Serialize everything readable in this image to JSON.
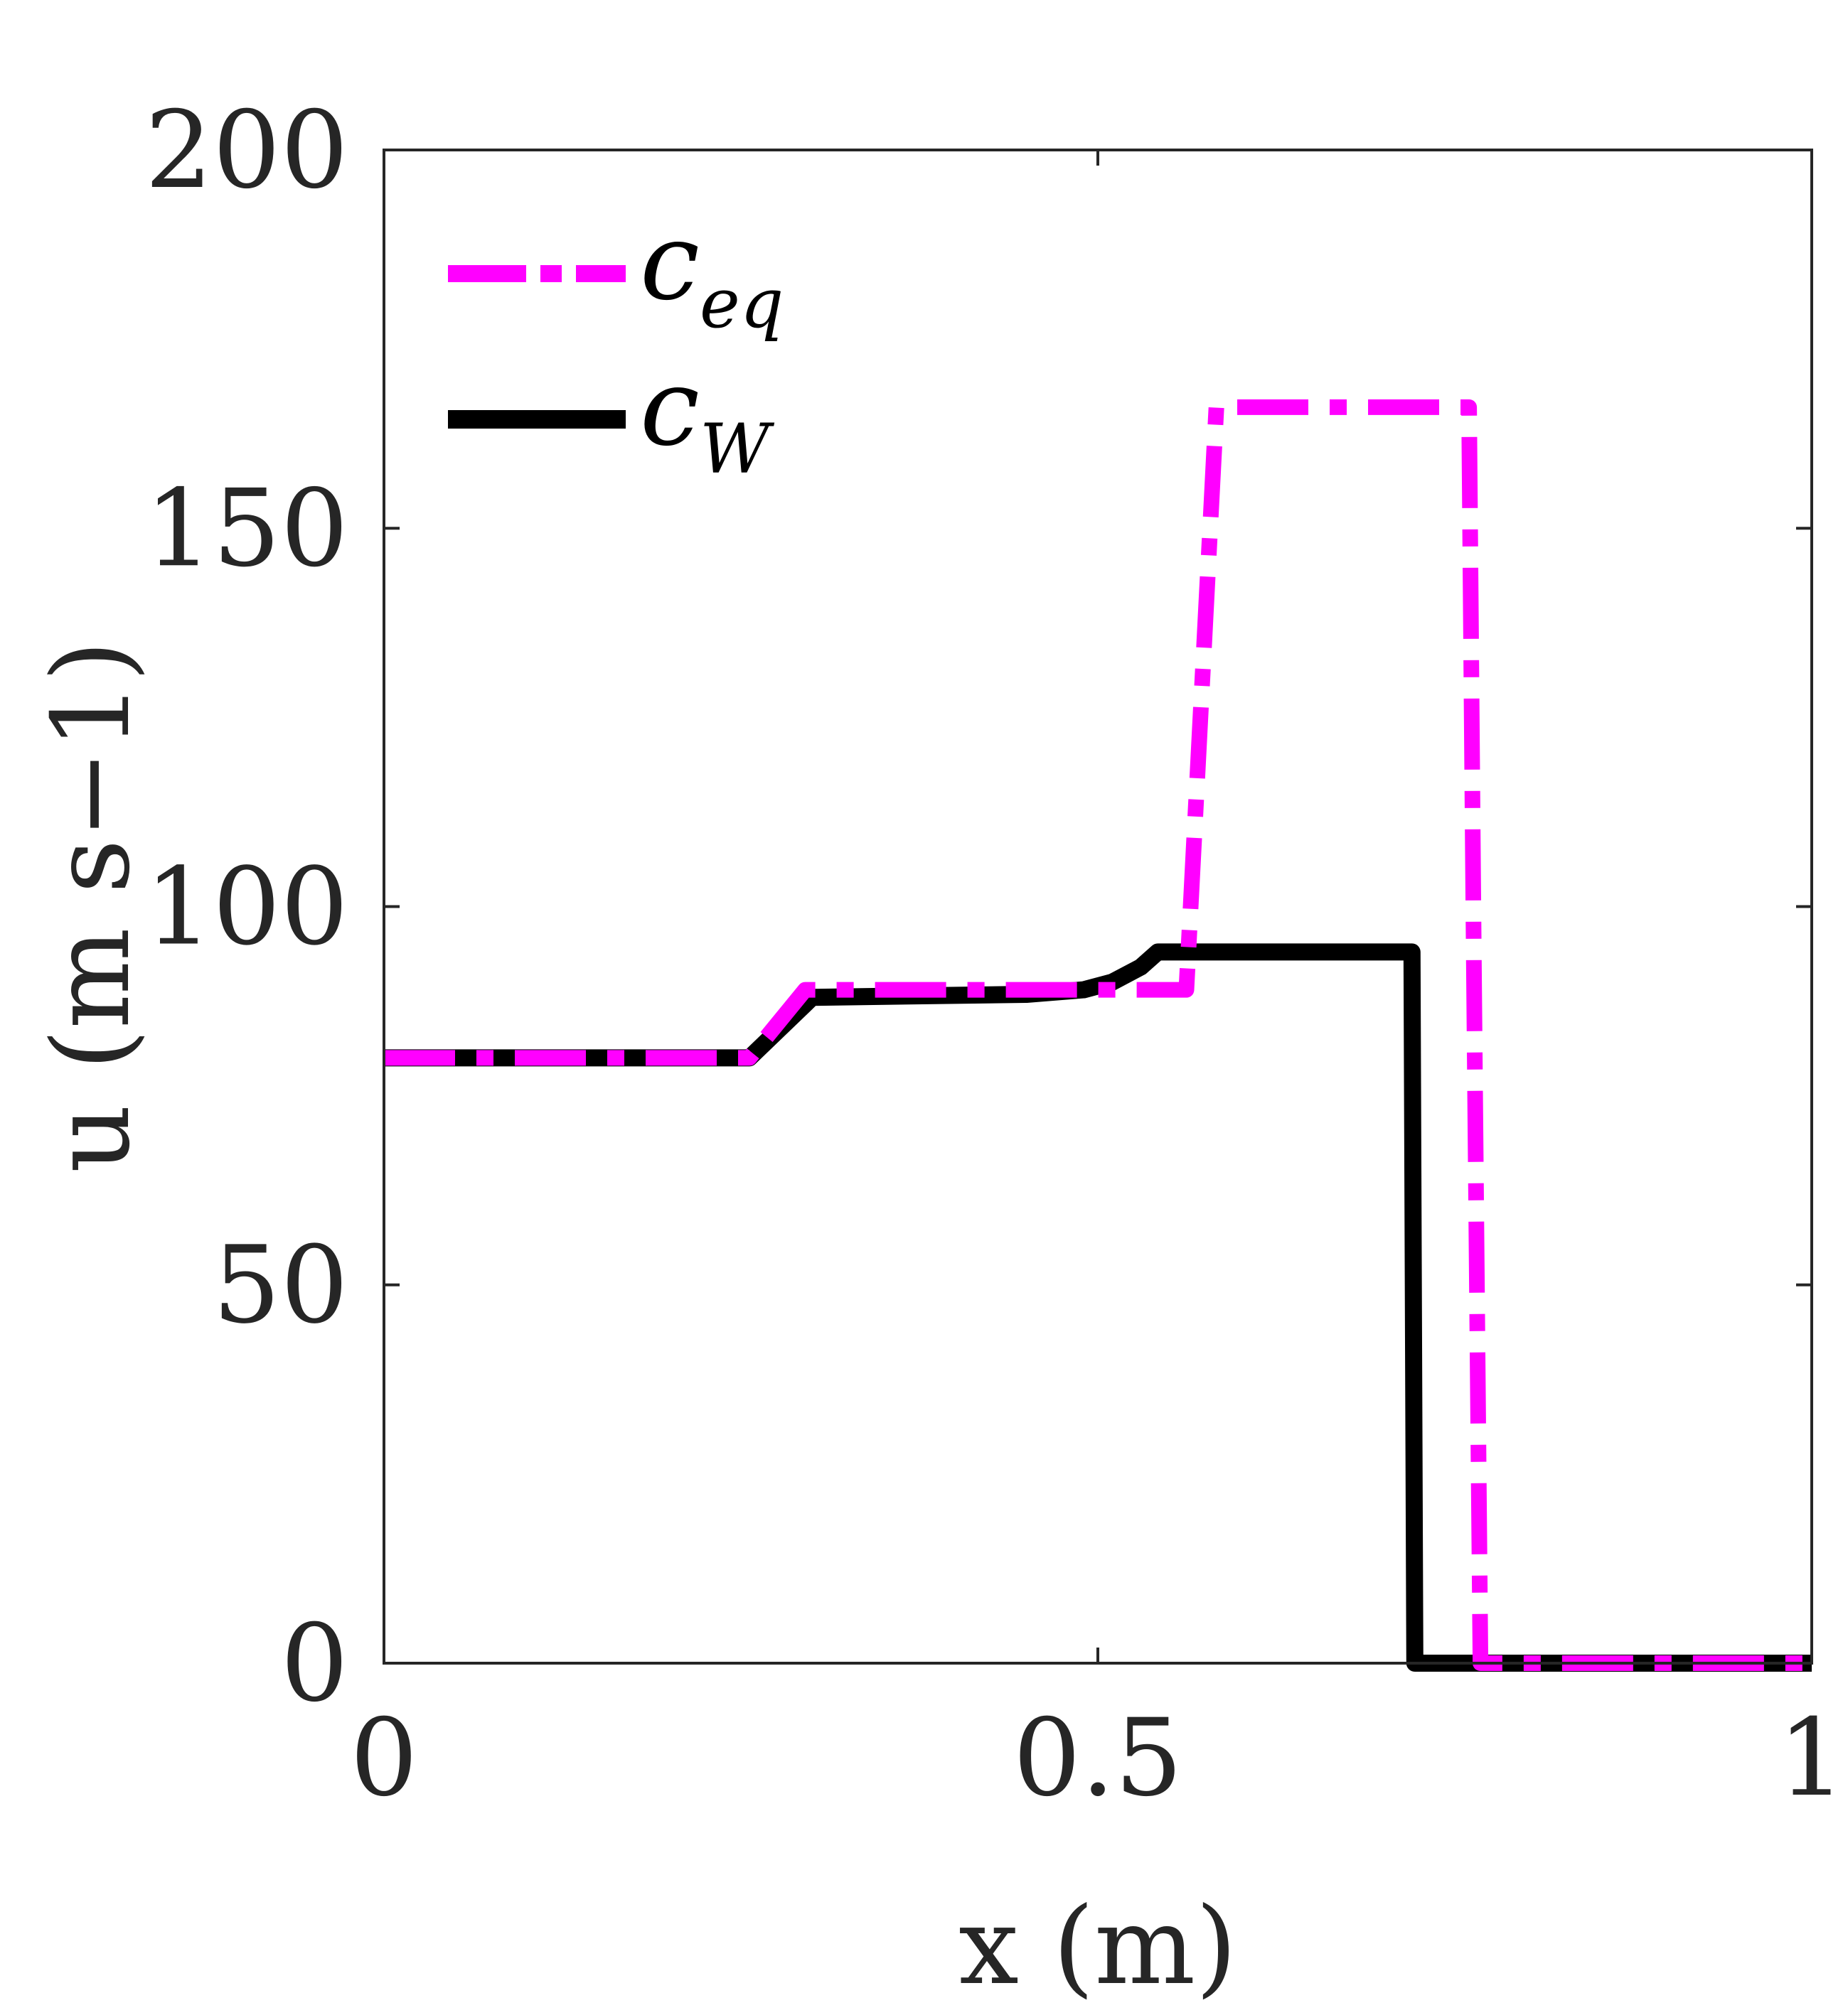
{
  "chart_data": {
    "type": "line",
    "xlabel": "x (m)",
    "ylabel": "u (m s−1)",
    "xlim": [
      0,
      1
    ],
    "ylim": [
      0,
      200
    ],
    "x_ticks": [
      "0",
      "0.5",
      "1"
    ],
    "y_ticks": [
      "0",
      "50",
      "100",
      "150",
      "200"
    ],
    "grid": false,
    "legend_position": "top-left",
    "series": [
      {
        "name": "c_eq",
        "legend_main": "c",
        "legend_sub": "eq",
        "color": "#ff00ff",
        "style": "dash-dot",
        "x": [
          0,
          0.256,
          0.295,
          0.5,
          0.558,
          0.562,
          0.583,
          0.76,
          0.763,
          0.768,
          1
        ],
        "y": [
          80,
          80,
          89,
          89,
          89,
          89,
          166,
          166,
          100,
          0,
          0
        ]
      },
      {
        "name": "c_W",
        "legend_main": "c",
        "legend_sub": "W",
        "color": "#000000",
        "style": "solid",
        "x": [
          0,
          0.256,
          0.3,
          0.45,
          0.49,
          0.51,
          0.53,
          0.542,
          0.72,
          0.722,
          1
        ],
        "y": [
          80,
          80,
          88,
          88.4,
          89,
          90,
          92,
          94,
          94,
          0,
          0
        ]
      }
    ]
  }
}
